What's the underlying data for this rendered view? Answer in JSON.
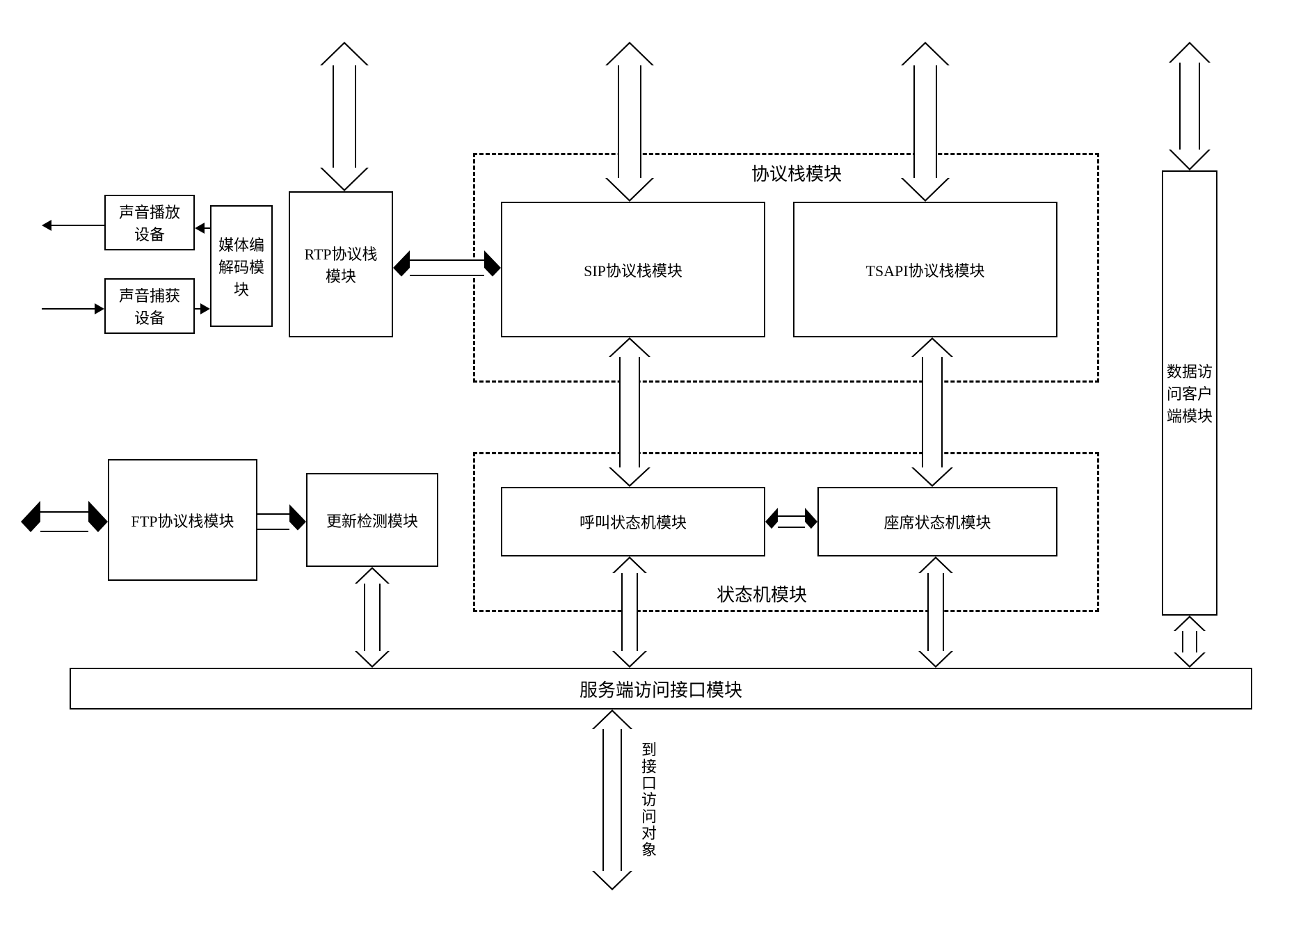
{
  "diagram": {
    "type": "flowchart",
    "background_color": "#ffffff",
    "border_color": "#000000",
    "font_family": "SimSun",
    "boxes": {
      "audio_play": {
        "label": "声音播放\n设备",
        "fontsize": 22
      },
      "audio_capture": {
        "label": "声音捕获\n设备",
        "fontsize": 22
      },
      "codec": {
        "label": "媒体编\n解码模\n块",
        "fontsize": 22
      },
      "rtp": {
        "label": "RTP协议栈\n模块",
        "fontsize": 22
      },
      "sip": {
        "label": "SIP协议栈模块",
        "fontsize": 22
      },
      "tsapi": {
        "label": "TSAPI协议栈模块",
        "fontsize": 22
      },
      "data_client": {
        "label": "数据访问客户端模块",
        "fontsize": 22,
        "vertical": true
      },
      "ftp": {
        "label": "FTP协议栈模块",
        "fontsize": 22
      },
      "update": {
        "label": "更新检测模块",
        "fontsize": 22
      },
      "call_sm": {
        "label": "呼叫状态机模块",
        "fontsize": 22
      },
      "agent_sm": {
        "label": "座席状态机模块",
        "fontsize": 22
      },
      "server_api": {
        "label": "服务端访问接口模块",
        "fontsize": 26
      }
    },
    "groups": {
      "protocol_stack": {
        "label": "协议栈模块",
        "fontsize": 26
      },
      "state_machine": {
        "label": "状态机模块",
        "fontsize": 26
      }
    },
    "external": {
      "to_interface": {
        "label": "到接口访问对象",
        "fontsize": 22
      }
    },
    "arrow_style": {
      "shaft_width": 26,
      "head_width": 50,
      "head_length": 26,
      "fill": "#ffffff",
      "stroke": "#000000"
    }
  }
}
